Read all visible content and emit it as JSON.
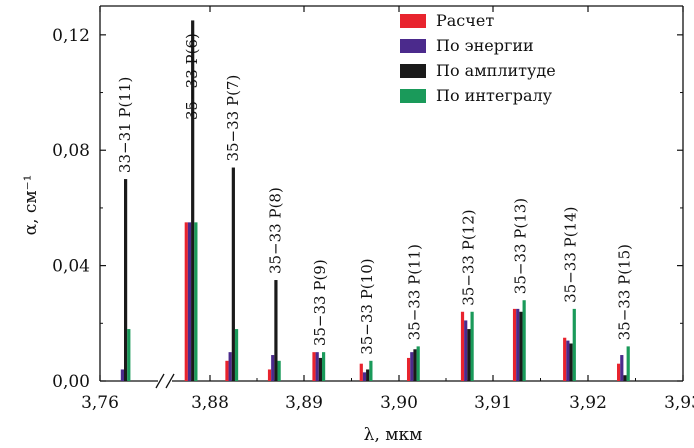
{
  "chart_data": {
    "type": "bar",
    "xlabel": "λ, мкм",
    "ylabel": "α, см⁻¹",
    "ylim": [
      0,
      0.13
    ],
    "yticks": [
      "0,00",
      "0,04",
      "0,08",
      "0,12"
    ],
    "xticks": [
      "3,76",
      "3,88",
      "3,89",
      "3,90",
      "3,91",
      "3,92",
      "3,93"
    ],
    "axis_break": true,
    "legend_position": "top-right",
    "series": [
      {
        "name": "Расчет",
        "color": "#e8242e"
      },
      {
        "name": "По энергии",
        "color": "#4b2a8c"
      },
      {
        "name": "По амплитуде",
        "color": "#1a1a1a"
      },
      {
        "name": "По интегралу",
        "color": "#1a9a5a"
      }
    ],
    "lines": [
      {
        "label": "33−31 P(11)",
        "x": 3.7608,
        "values": [
          0.0,
          0.004,
          0.07,
          0.018
        ]
      },
      {
        "label": "35−33 P(6)",
        "x": 3.878,
        "values": [
          0.055,
          0.055,
          0.125,
          0.055
        ]
      },
      {
        "label": "35−33 P(7)",
        "x": 3.8823,
        "values": [
          0.007,
          0.01,
          0.074,
          0.018
        ]
      },
      {
        "label": "35−33 P(8)",
        "x": 3.8868,
        "values": [
          0.004,
          0.009,
          0.035,
          0.007
        ]
      },
      {
        "label": "35−33 P(9)",
        "x": 3.8915,
        "values": [
          0.01,
          0.01,
          0.008,
          0.01
        ]
      },
      {
        "label": "35−33 P(10)",
        "x": 3.8965,
        "values": [
          0.006,
          0.003,
          0.004,
          0.007
        ]
      },
      {
        "label": "35−33 P(11)",
        "x": 3.9015,
        "values": [
          0.008,
          0.01,
          0.011,
          0.012
        ]
      },
      {
        "label": "35−33 P(12)",
        "x": 3.9072,
        "values": [
          0.024,
          0.021,
          0.018,
          0.024
        ]
      },
      {
        "label": "35−33 P(13)",
        "x": 3.9127,
        "values": [
          0.025,
          0.025,
          0.024,
          0.028
        ]
      },
      {
        "label": "35−33 P(14)",
        "x": 3.918,
        "values": [
          0.015,
          0.014,
          0.013,
          0.025
        ]
      },
      {
        "label": "35−33 P(15)",
        "x": 3.9237,
        "values": [
          0.006,
          0.009,
          0.002,
          0.012
        ]
      }
    ]
  }
}
